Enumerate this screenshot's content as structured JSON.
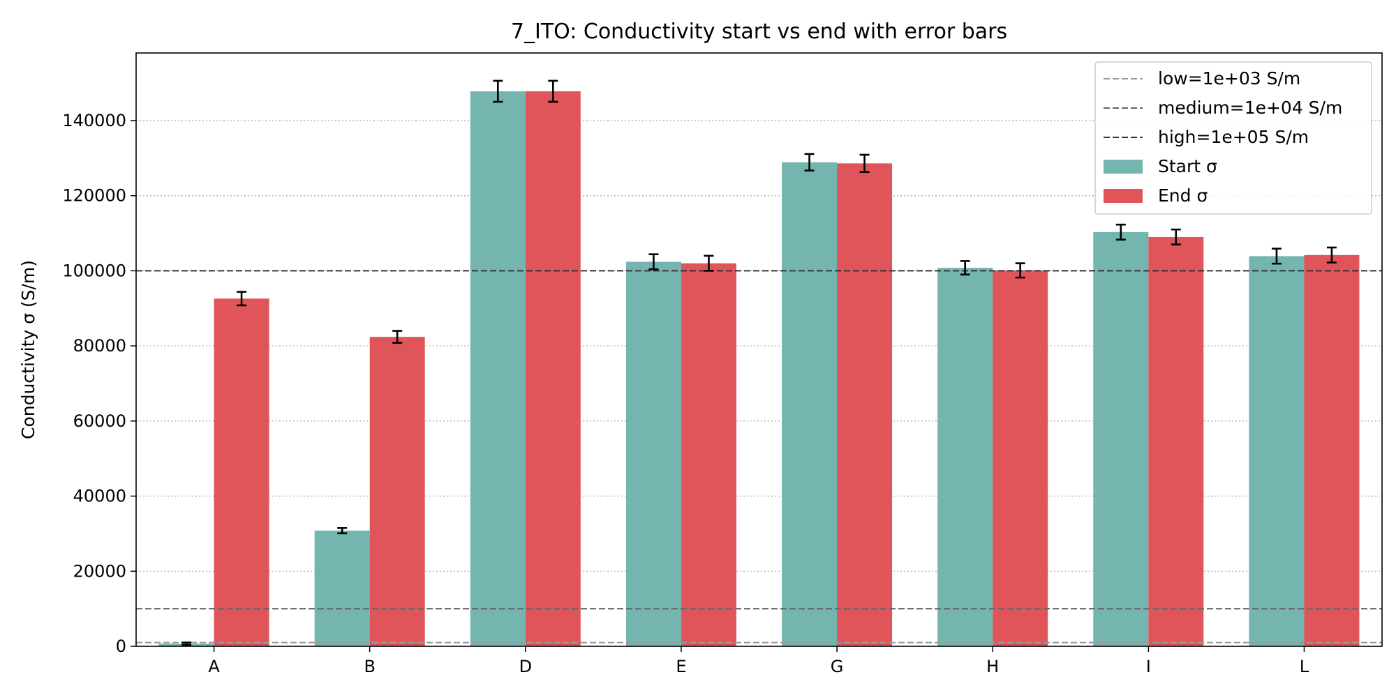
{
  "chart_data": {
    "type": "bar",
    "title": "7_ITO: Conductivity start vs end with error bars",
    "xlabel": "",
    "ylabel": "Conductivity σ (S/m)",
    "categories": [
      "A",
      "B",
      "D",
      "E",
      "G",
      "H",
      "I",
      "L"
    ],
    "series": [
      {
        "name": "Start σ",
        "color": "#74b5b0",
        "values": [
          700,
          30800,
          147800,
          102400,
          128900,
          100800,
          110300,
          103900
        ],
        "errors": [
          300,
          700,
          2800,
          2000,
          2200,
          1800,
          2000,
          2000
        ]
      },
      {
        "name": "End σ",
        "color": "#e0555a",
        "values": [
          92600,
          82400,
          147800,
          102000,
          128600,
          100100,
          109000,
          104200
        ],
        "errors": [
          1800,
          1600,
          2800,
          2000,
          2300,
          1900,
          2000,
          2000
        ]
      }
    ],
    "reference_lines": [
      {
        "label": "low=1e+03 S/m",
        "value": 1000,
        "color": "#999999"
      },
      {
        "label": "medium=1e+04 S/m",
        "value": 10000,
        "color": "#666666"
      },
      {
        "label": "high=1e+05 S/m",
        "value": 100000,
        "color": "#333333"
      }
    ],
    "ylim": [
      0,
      158000
    ],
    "yticks": [
      0,
      20000,
      40000,
      60000,
      80000,
      100000,
      120000,
      140000
    ],
    "ytick_labels": [
      "0",
      "20000",
      "40000",
      "60000",
      "80000",
      "100000",
      "120000",
      "140000"
    ],
    "grid": "y-dotted",
    "legend_position": "top-right",
    "error_bar_color": "#000000"
  }
}
